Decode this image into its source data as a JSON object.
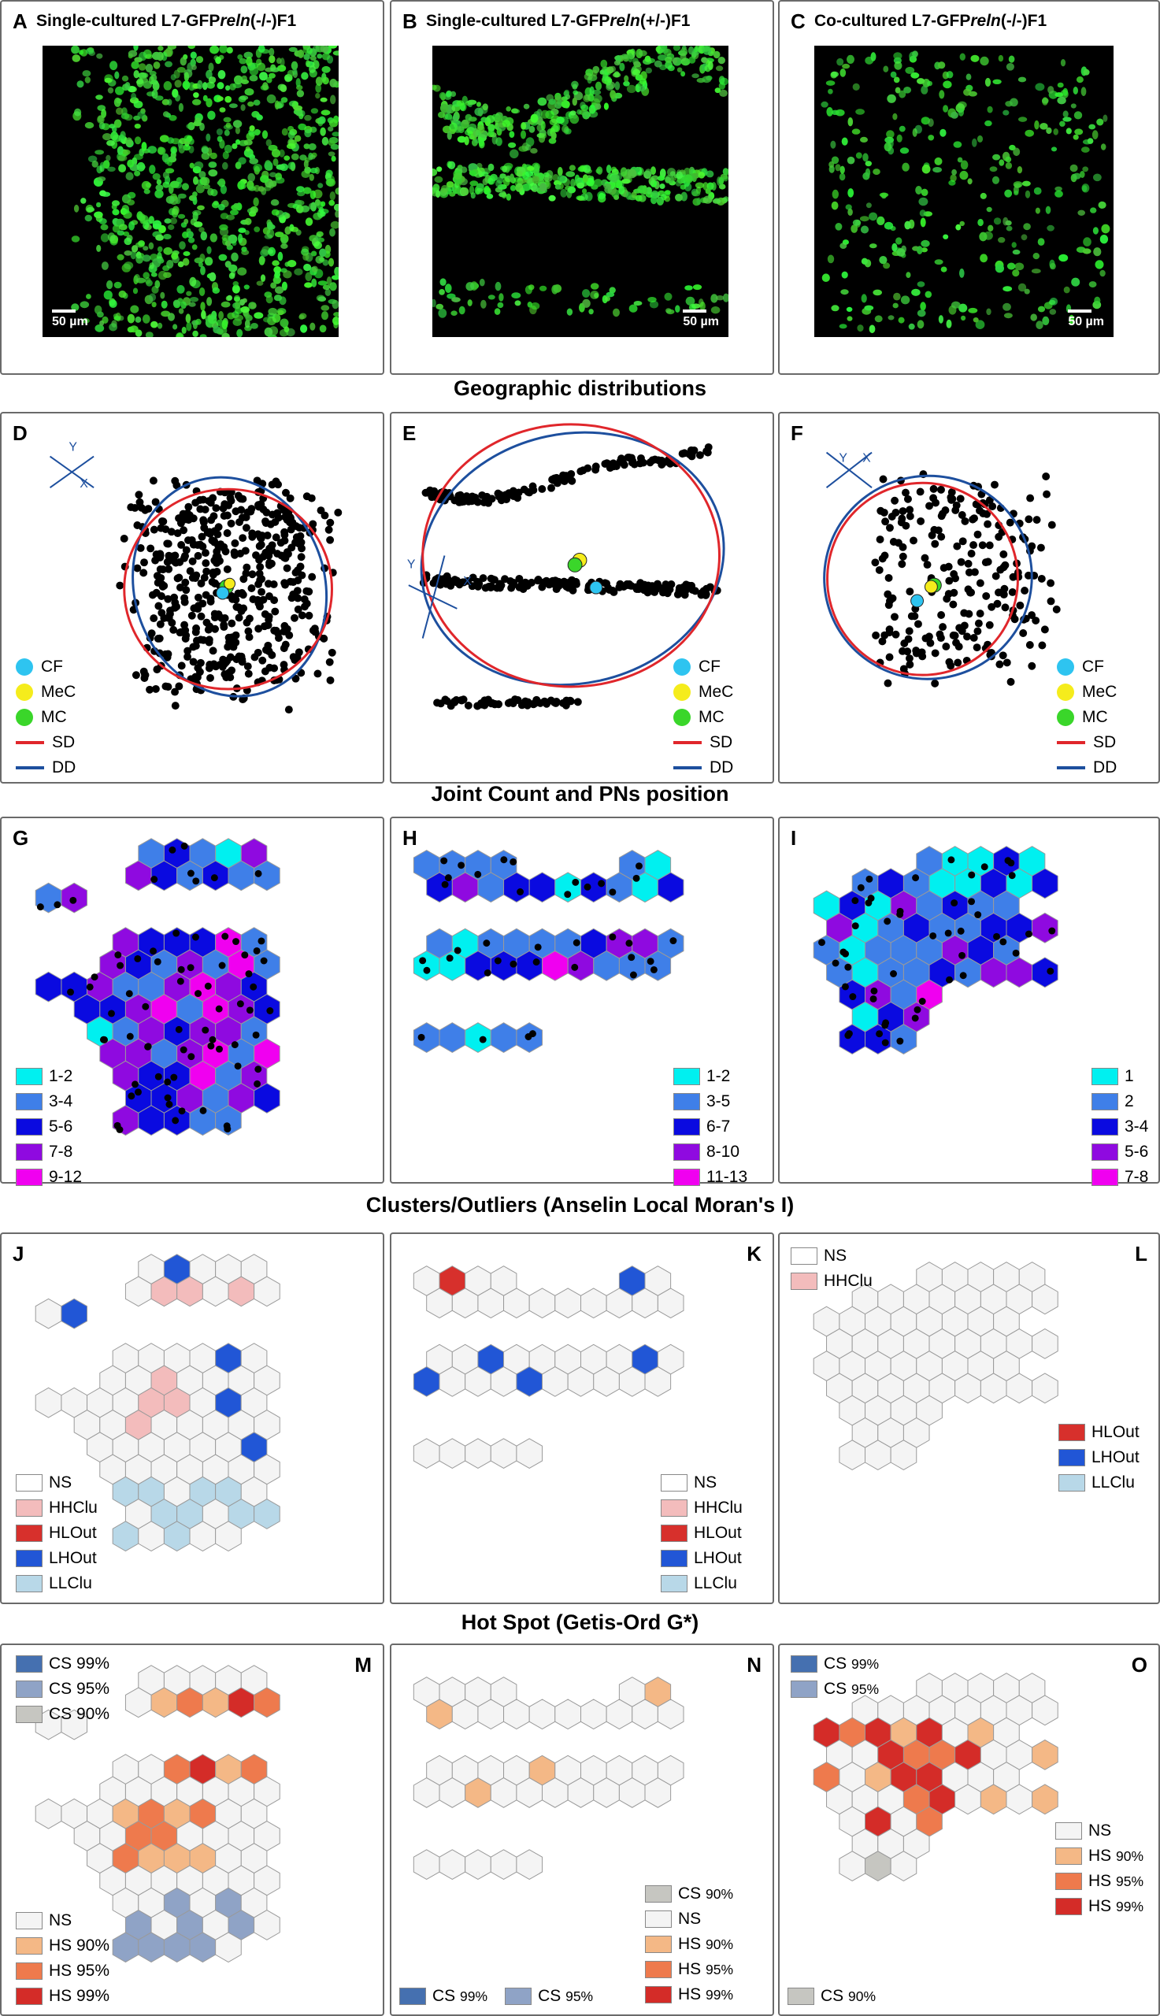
{
  "sections": {
    "geo": "Geographic distributions",
    "joint": "Joint Count and PNs position",
    "clusters": "Clusters/Outliers (Anselin Local Moran's I)",
    "hotspot": "Hot Spot (Getis-Ord G*)"
  },
  "panels": {
    "A": {
      "label": "A",
      "title_pre": "Single-cultured L7-GFP",
      "title_gene": "reln",
      "title_post": "(-/-)F1",
      "scale": "50 µm"
    },
    "B": {
      "label": "B",
      "title_pre": "Single-cultured L7-GFP",
      "title_gene": "reln",
      "title_post": "(+/-)F1",
      "scale": "50 µm"
    },
    "C": {
      "label": "C",
      "title_pre": "Co-cultured L7-GFP",
      "title_gene": "reln",
      "title_post": "(-/-)F1",
      "scale": "50 µm"
    },
    "D": {
      "label": "D"
    },
    "E": {
      "label": "E"
    },
    "F": {
      "label": "F"
    },
    "G": {
      "label": "G"
    },
    "H": {
      "label": "H"
    },
    "I": {
      "label": "I"
    },
    "J": {
      "label": "J"
    },
    "K": {
      "label": "K"
    },
    "L": {
      "label": "L"
    },
    "M": {
      "label": "M"
    },
    "N": {
      "label": "N"
    },
    "O": {
      "label": "O"
    }
  },
  "axes": {
    "y": "Y",
    "x": "X"
  },
  "geo_legend": [
    {
      "label": "CF",
      "color": "#2ec4f0"
    },
    {
      "label": "MeC",
      "color": "#f5ec1c"
    },
    {
      "label": "MC",
      "color": "#3ad62a"
    },
    {
      "label": "SD",
      "color": "#e0262b"
    },
    {
      "label": "DD",
      "color": "#1d4f9e"
    }
  ],
  "joint_colors": [
    "#00f0f0",
    "#3f7fe8",
    "#0a0ae0",
    "#8f0ae0",
    "#f000f0"
  ],
  "joint_legend_G": [
    "1-2",
    "3-4",
    "5-6",
    "7-8",
    "9-12"
  ],
  "joint_legend_H": [
    "1-2",
    "3-5",
    "6-7",
    "8-10",
    "11-13"
  ],
  "joint_legend_I": [
    "1",
    "2",
    "3-4",
    "5-6",
    "7-8"
  ],
  "cluster_colors": {
    "NS": "#f4f4f4",
    "HHClu": "#f3bcbc",
    "HLOut": "#d7302c",
    "LHOut": "#2156d6",
    "LLClu": "#b8d8e8"
  },
  "cluster_legend": [
    "NS",
    "HHClu",
    "HLOut",
    "LHOut",
    "LLClu"
  ],
  "hot_colors": {
    "NS": "#f4f4f4",
    "CS99": "#4570b0",
    "CS95": "#8fa3c6",
    "CS90": "#c6c6c1",
    "HS90": "#f4b886",
    "HS95": "#ee7a4d",
    "HS99": "#d42c28"
  },
  "hot_legend_M_top": [
    "CS 99%",
    "CS 95%",
    "CS 90%"
  ],
  "hot_legend_M_bottom": [
    "NS",
    "HS 90%",
    "HS 95%",
    "HS 99%"
  ],
  "hot_legend_N": {
    "cs90": "CS",
    "cs90_sub": "90%",
    "ns": "NS",
    "hs90": "HS",
    "hs90_sub": "90%",
    "hs95": "HS",
    "hs95_sub": "95%",
    "hs99": "HS",
    "hs99_sub": "99%",
    "cs99": "CS",
    "cs99_sub": "99%",
    "cs95": "CS",
    "cs95_sub": "95%"
  },
  "hot_legend_O": {
    "cs99": "CS",
    "cs99_sub": "99%",
    "cs95": "CS",
    "cs95_sub": "95%",
    "ns": "NS",
    "hs90": "HS",
    "hs90_sub": "90%",
    "hs95": "HS",
    "hs95_sub": "95%",
    "hs99": "HS",
    "hs99_sub": "99%",
    "cs90": "CS",
    "cs90_sub": "90%"
  }
}
